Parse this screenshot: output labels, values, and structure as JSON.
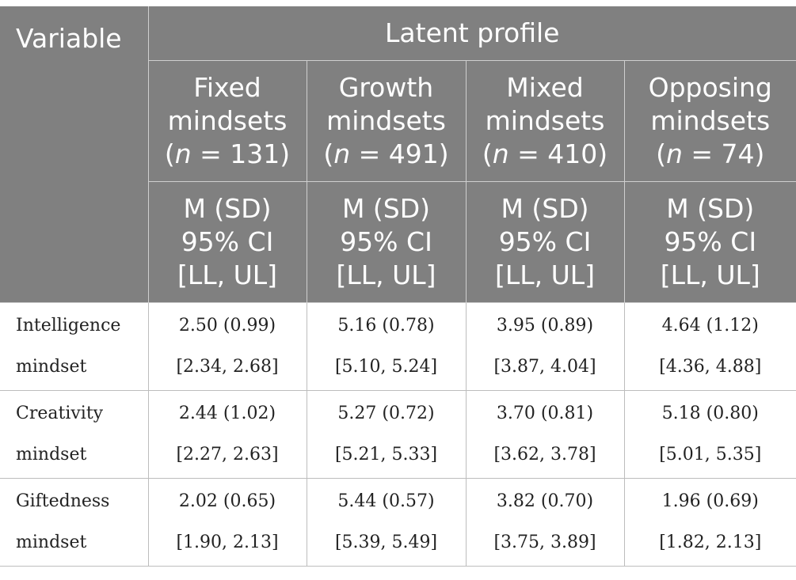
{
  "header": {
    "variable": "Variable",
    "latent_profile": "Latent profile",
    "profiles": [
      {
        "name": "Fixed",
        "name2": "mindsets",
        "n_prefix": "(",
        "n_var": "n",
        "n_suffix": " = 131)"
      },
      {
        "name": "Growth",
        "name2": "mindsets",
        "n_prefix": "(",
        "n_var": "n",
        "n_suffix": " = 491)"
      },
      {
        "name": "Mixed",
        "name2": "mindsets",
        "n_prefix": "(",
        "n_var": "n",
        "n_suffix": " = 410)"
      },
      {
        "name": "Opposing",
        "name2": "mindsets",
        "n_prefix": "(",
        "n_var": "n",
        "n_suffix": " = 74)"
      }
    ],
    "stat_line1": "M (SD)",
    "stat_line2": "95% CI",
    "stat_line3": "[LL, UL]"
  },
  "rows": [
    {
      "label1": "Intelligence",
      "label2": "mindset",
      "cells": [
        {
          "msd": "2.50 (0.99)",
          "ci": "[2.34, 2.68]"
        },
        {
          "msd": "5.16 (0.78)",
          "ci": "[5.10, 5.24]"
        },
        {
          "msd": "3.95 (0.89)",
          "ci": "[3.87, 4.04]"
        },
        {
          "msd": "4.64 (1.12)",
          "ci": "[4.36, 4.88]"
        }
      ]
    },
    {
      "label1": "Creativity",
      "label2": "mindset",
      "cells": [
        {
          "msd": "2.44 (1.02)",
          "ci": "[2.27, 2.63]"
        },
        {
          "msd": "5.27 (0.72)",
          "ci": "[5.21, 5.33]"
        },
        {
          "msd": "3.70 (0.81)",
          "ci": "[3.62, 3.78]"
        },
        {
          "msd": "5.18 (0.80)",
          "ci": "[5.01, 5.35]"
        }
      ]
    },
    {
      "label1": "Giftedness",
      "label2": "mindset",
      "cells": [
        {
          "msd": "2.02 (0.65)",
          "ci": "[1.90, 2.13]"
        },
        {
          "msd": "5.44 (0.57)",
          "ci": "[5.39, 5.49]"
        },
        {
          "msd": "3.82 (0.70)",
          "ci": "[3.75, 3.89]"
        },
        {
          "msd": "1.96 (0.69)",
          "ci": "[1.82, 2.13]"
        }
      ]
    }
  ]
}
